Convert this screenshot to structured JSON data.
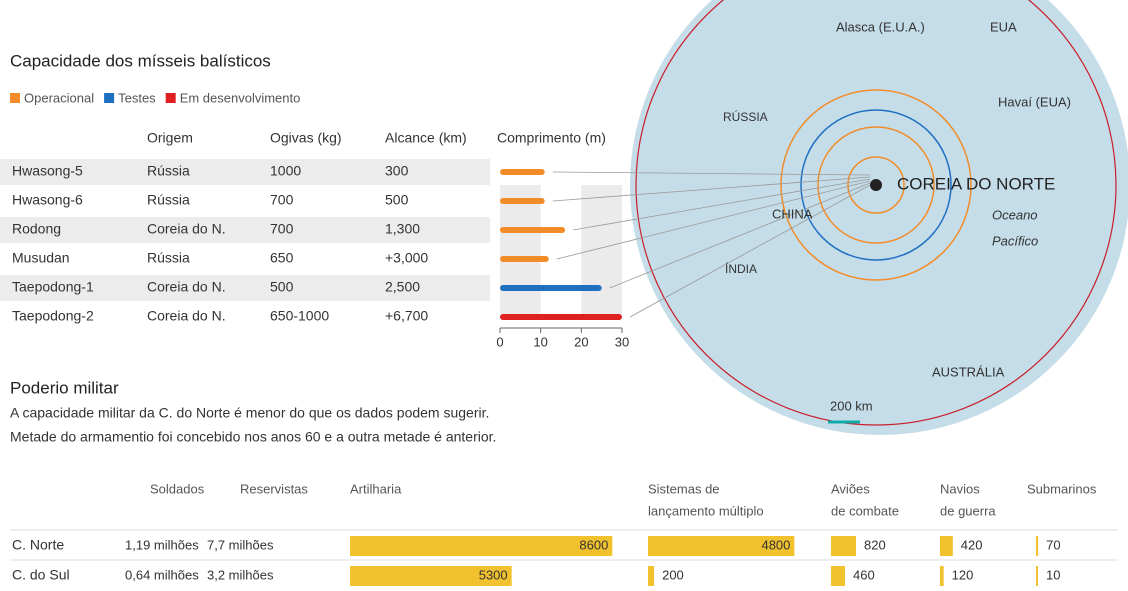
{
  "missiles": {
    "title": "Capacidade dos mísseis balísticos",
    "legend": [
      {
        "name": "Operacional",
        "color": "#f28c28"
      },
      {
        "name": "Testes",
        "color": "#1f6fc1"
      },
      {
        "name": "Em desenvolvimento",
        "color": "#e02020"
      }
    ],
    "headers": [
      "Origem",
      "Ogivas (kg)",
      "Alcance (km)",
      "Comprimento (m)"
    ],
    "rows": [
      {
        "name": "Hwasong-5",
        "origin": "Rússia",
        "warhead": "1000",
        "range": "300",
        "length": 11,
        "color": "#f28c28"
      },
      {
        "name": "Hwasong-6",
        "origin": "Rússia",
        "warhead": "700",
        "range": "500",
        "length": 11,
        "color": "#f28c28"
      },
      {
        "name": "Rodong",
        "origin": "Coreia do N.",
        "warhead": "700",
        "range": "1,300",
        "length": 16,
        "color": "#f28c28"
      },
      {
        "name": "Musudan",
        "origin": "Rússia",
        "warhead": "650",
        "range": "+3,000",
        "length": 12,
        "color": "#f28c28"
      },
      {
        "name": "Taepodong-1",
        "origin": "Coreia do N.",
        "warhead": "500",
        "range": "2,500",
        "length": 25,
        "color": "#1f6fc1"
      },
      {
        "name": "Taepodong-2",
        "origin": "Coreia do N.",
        "warhead": "650-1000",
        "range": "+6,700",
        "length": 30,
        "color": "#e02020"
      }
    ],
    "xlim": [
      0,
      30
    ],
    "xticks": [
      0,
      10,
      20,
      30
    ]
  },
  "map": {
    "labels": [
      "Alasca (E.U.A.)",
      "EUA",
      "Havaí (EUA)",
      "RÚSSIA",
      "CHINA",
      "ÍNDIA",
      "COREIA DO NORTE",
      "Oceano",
      "Pacífico",
      "AUSTRÁLIA",
      "200 km"
    ]
  },
  "military": {
    "title": "Poderio militar",
    "description": [
      "A capacidade militar da C. do Norte é menor do que os dados podem sugerir.",
      "Metade do armamentio foi concebido nos anos 60 e a outra metade é anterior."
    ],
    "headers": [
      "Soldados",
      "Reservistas",
      "Artilharia",
      [
        "Sistemas de",
        "lançamento múltiplo"
      ],
      [
        "Aviões",
        "de combate"
      ],
      [
        "Navios",
        "de guerra"
      ],
      "Submarinos"
    ],
    "color": "#f2c12e",
    "rows": [
      {
        "name": "C. Norte",
        "soldiers": "1,19 milhões",
        "reservists": "7,7 milhões",
        "values": [
          8600,
          4800,
          820,
          420,
          70
        ]
      },
      {
        "name": "C. do Sul",
        "soldiers": "0,64 milhões",
        "reservists": "3,2 milhões",
        "values": [
          5300,
          200,
          460,
          120,
          10
        ]
      }
    ]
  }
}
